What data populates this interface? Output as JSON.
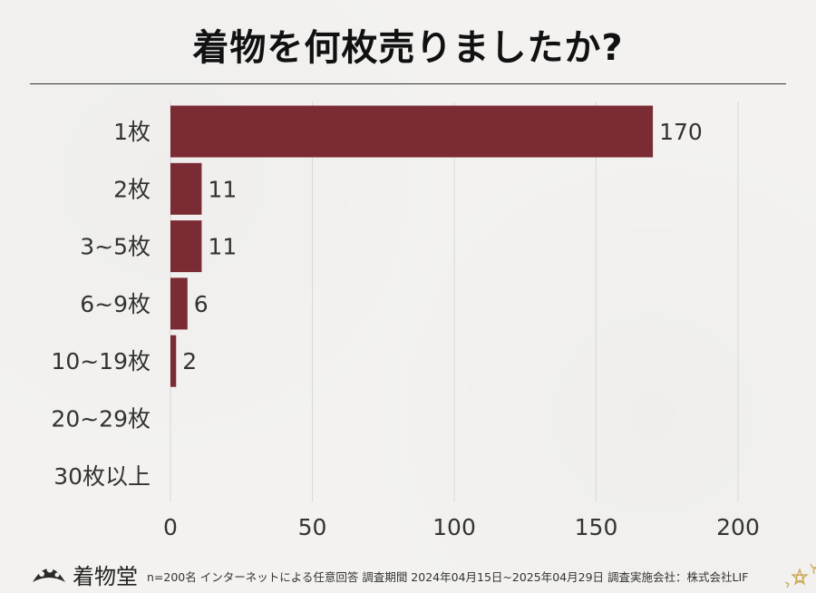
{
  "chart_data": {
    "type": "bar",
    "orientation": "horizontal",
    "title": "着物を何枚売りましたか?",
    "categories": [
      "1枚",
      "2枚",
      "3~5枚",
      "6~9枚",
      "10~19枚",
      "20~29枚",
      "30枚以上"
    ],
    "values": [
      170,
      11,
      11,
      6,
      2,
      0,
      0
    ],
    "data_labels": [
      "170",
      "11",
      "11",
      "6",
      "2",
      "",
      ""
    ],
    "xlim": [
      0,
      200
    ],
    "xticks": [
      0,
      50,
      100,
      150,
      200
    ],
    "xtick_labels": [
      "0",
      "50",
      "100",
      "150",
      "200"
    ],
    "grid": true,
    "legend": "none",
    "bar_color": "#7a2b33",
    "grid_color": "#d8d8d8"
  },
  "footer": {
    "brand": "着物堂",
    "note": "n=200名 インターネットによる任意回答 調査期間 2024年04月15日~2025年04月29日 調査実施会社：株式会社LIF"
  },
  "colors": {
    "background": "#f3f2f0",
    "title": "#111111",
    "bar": "#7a2b33",
    "logo_gold": "#c9a24a"
  }
}
